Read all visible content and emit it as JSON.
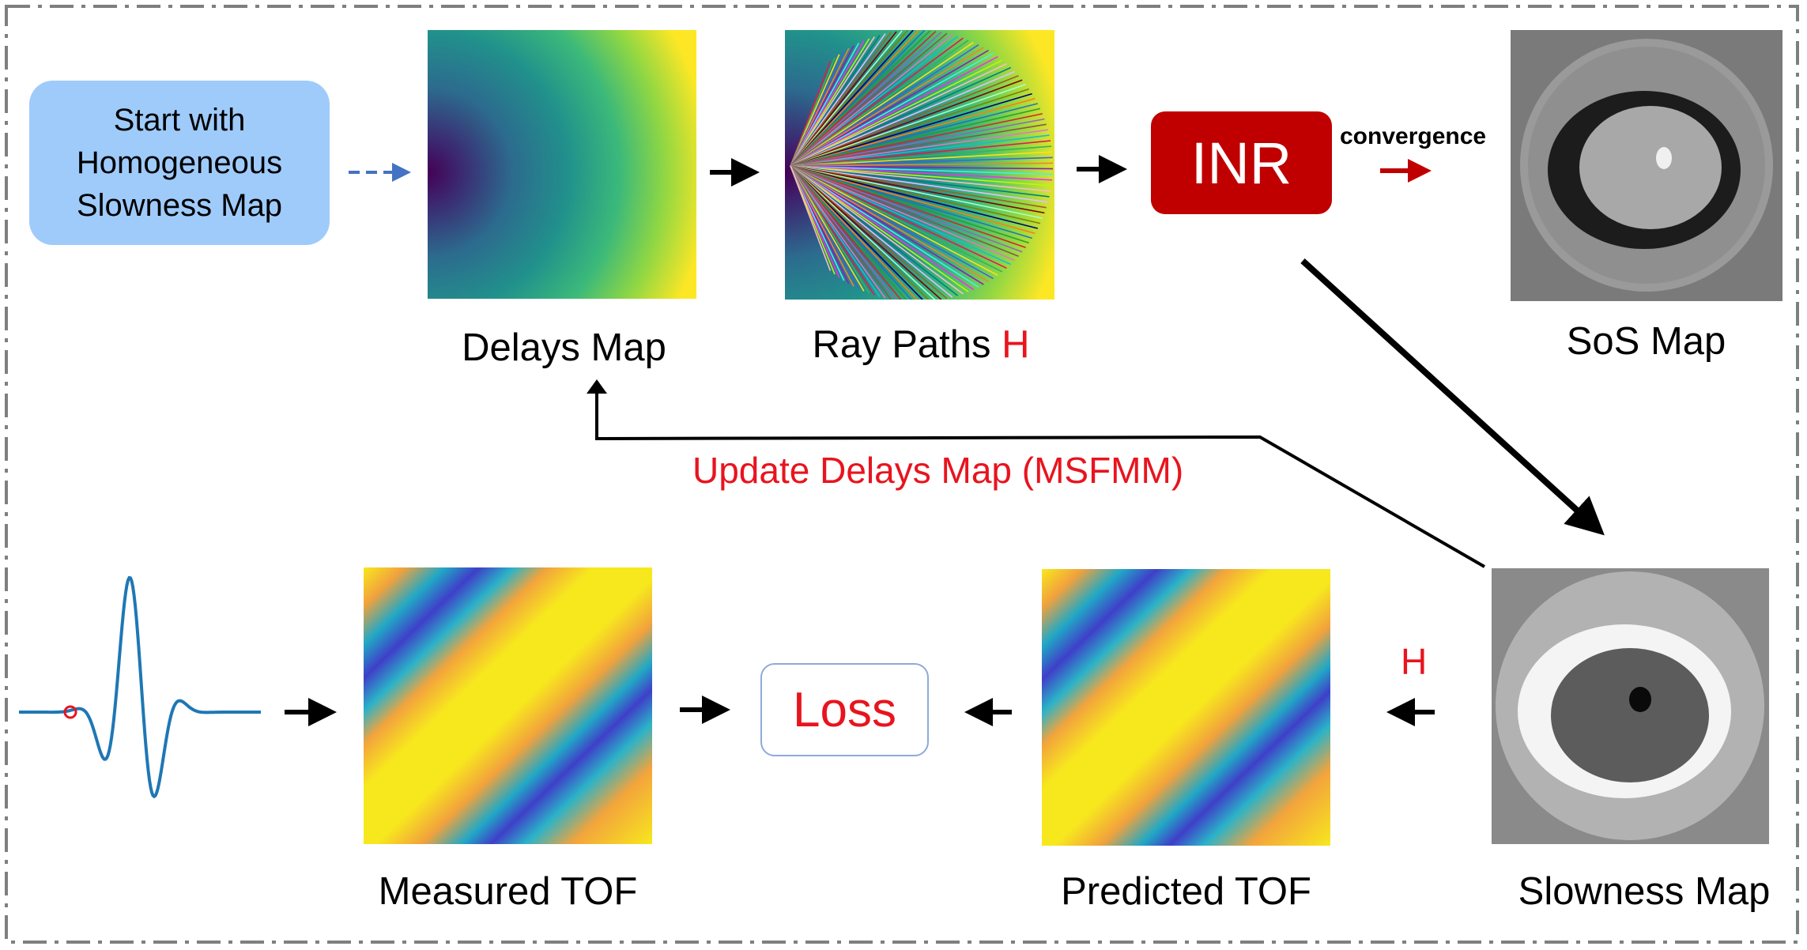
{
  "start_box": {
    "lines": [
      "Start with",
      "Homogeneous",
      "Slowness Map"
    ]
  },
  "captions": {
    "delays_map": "Delays Map",
    "ray_paths": "Ray Paths ",
    "ray_paths_h": "H",
    "sos_map": "SoS Map",
    "slowness_map": "Slowness Map",
    "measured_tof": "Measured TOF",
    "predicted_tof": "Predicted TOF"
  },
  "inr_label": "INR",
  "convergence_label": "convergence",
  "update_label": "Update Delays Map (MSFMM)",
  "h_label": "H",
  "loss_label": "Loss",
  "colors": {
    "start_box": "#9fcbfb",
    "inr_box": "#c00000",
    "accent_red": "#e8141e",
    "dashed_arrow": "#4472c4",
    "waveform": "#1f77b4",
    "loss_border": "#8eaadb",
    "frame": "#7f7f7f"
  }
}
